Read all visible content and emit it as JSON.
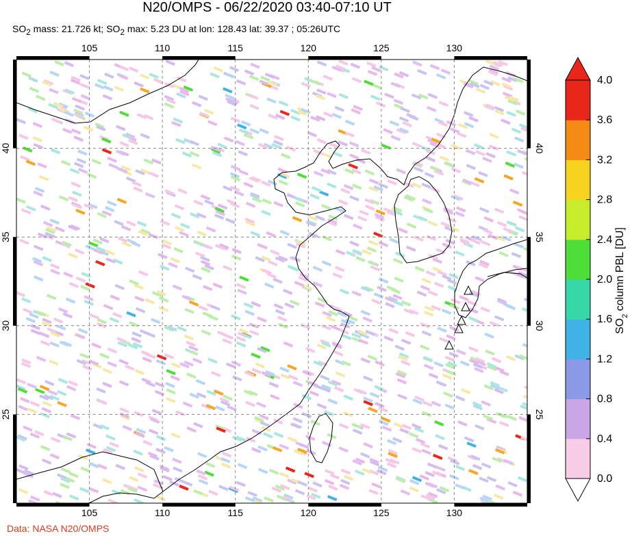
{
  "title": "N20/OMPS - 06/22/2020 03:40-07:10 UT",
  "subtitle": {
    "mass_prefix": "SO",
    "mass_sub": "2",
    "mass_text": " mass: 21.726 kt; SO",
    "max_sub": "2",
    "max_text": " max: 5.23 DU at lon: 128.43 lat: 39.37 ; 05:26UTC"
  },
  "source": "Data: NASA N20/OMPS",
  "map": {
    "lon_ticks": [
      "105",
      "110",
      "115",
      "120",
      "125",
      "130"
    ],
    "lon_values": [
      105,
      110,
      115,
      120,
      125,
      130
    ],
    "lat_ticks": [
      "40",
      "35",
      "30",
      "25"
    ],
    "lat_values": [
      40,
      35,
      30,
      25
    ],
    "lon_range": [
      100,
      135
    ],
    "lat_range": [
      20,
      45
    ],
    "coast_color": "#000000",
    "grid_color": "#888888"
  },
  "colorbar": {
    "label_prefix": "SO",
    "label_sub": "2",
    "label_text": " column PBL [DU]",
    "ticks": [
      "4.0",
      "3.6",
      "3.2",
      "2.8",
      "2.4",
      "2.0",
      "1.6",
      "1.2",
      "0.8",
      "0.4",
      "0.0"
    ],
    "tick_values": [
      4.0,
      3.6,
      3.2,
      2.8,
      2.4,
      2.0,
      1.6,
      1.2,
      0.8,
      0.4,
      0.0
    ],
    "colors": [
      "#ffffff",
      "#f6cce6",
      "#c9a7e6",
      "#8a9ae6",
      "#3fb3e6",
      "#37d8a8",
      "#4fde38",
      "#c7ec2c",
      "#f7d21e",
      "#f58a14",
      "#e8261a"
    ],
    "overflow_color": "#e8261a"
  },
  "volcano_icons": [
    "volcano-triangle-icon"
  ]
}
